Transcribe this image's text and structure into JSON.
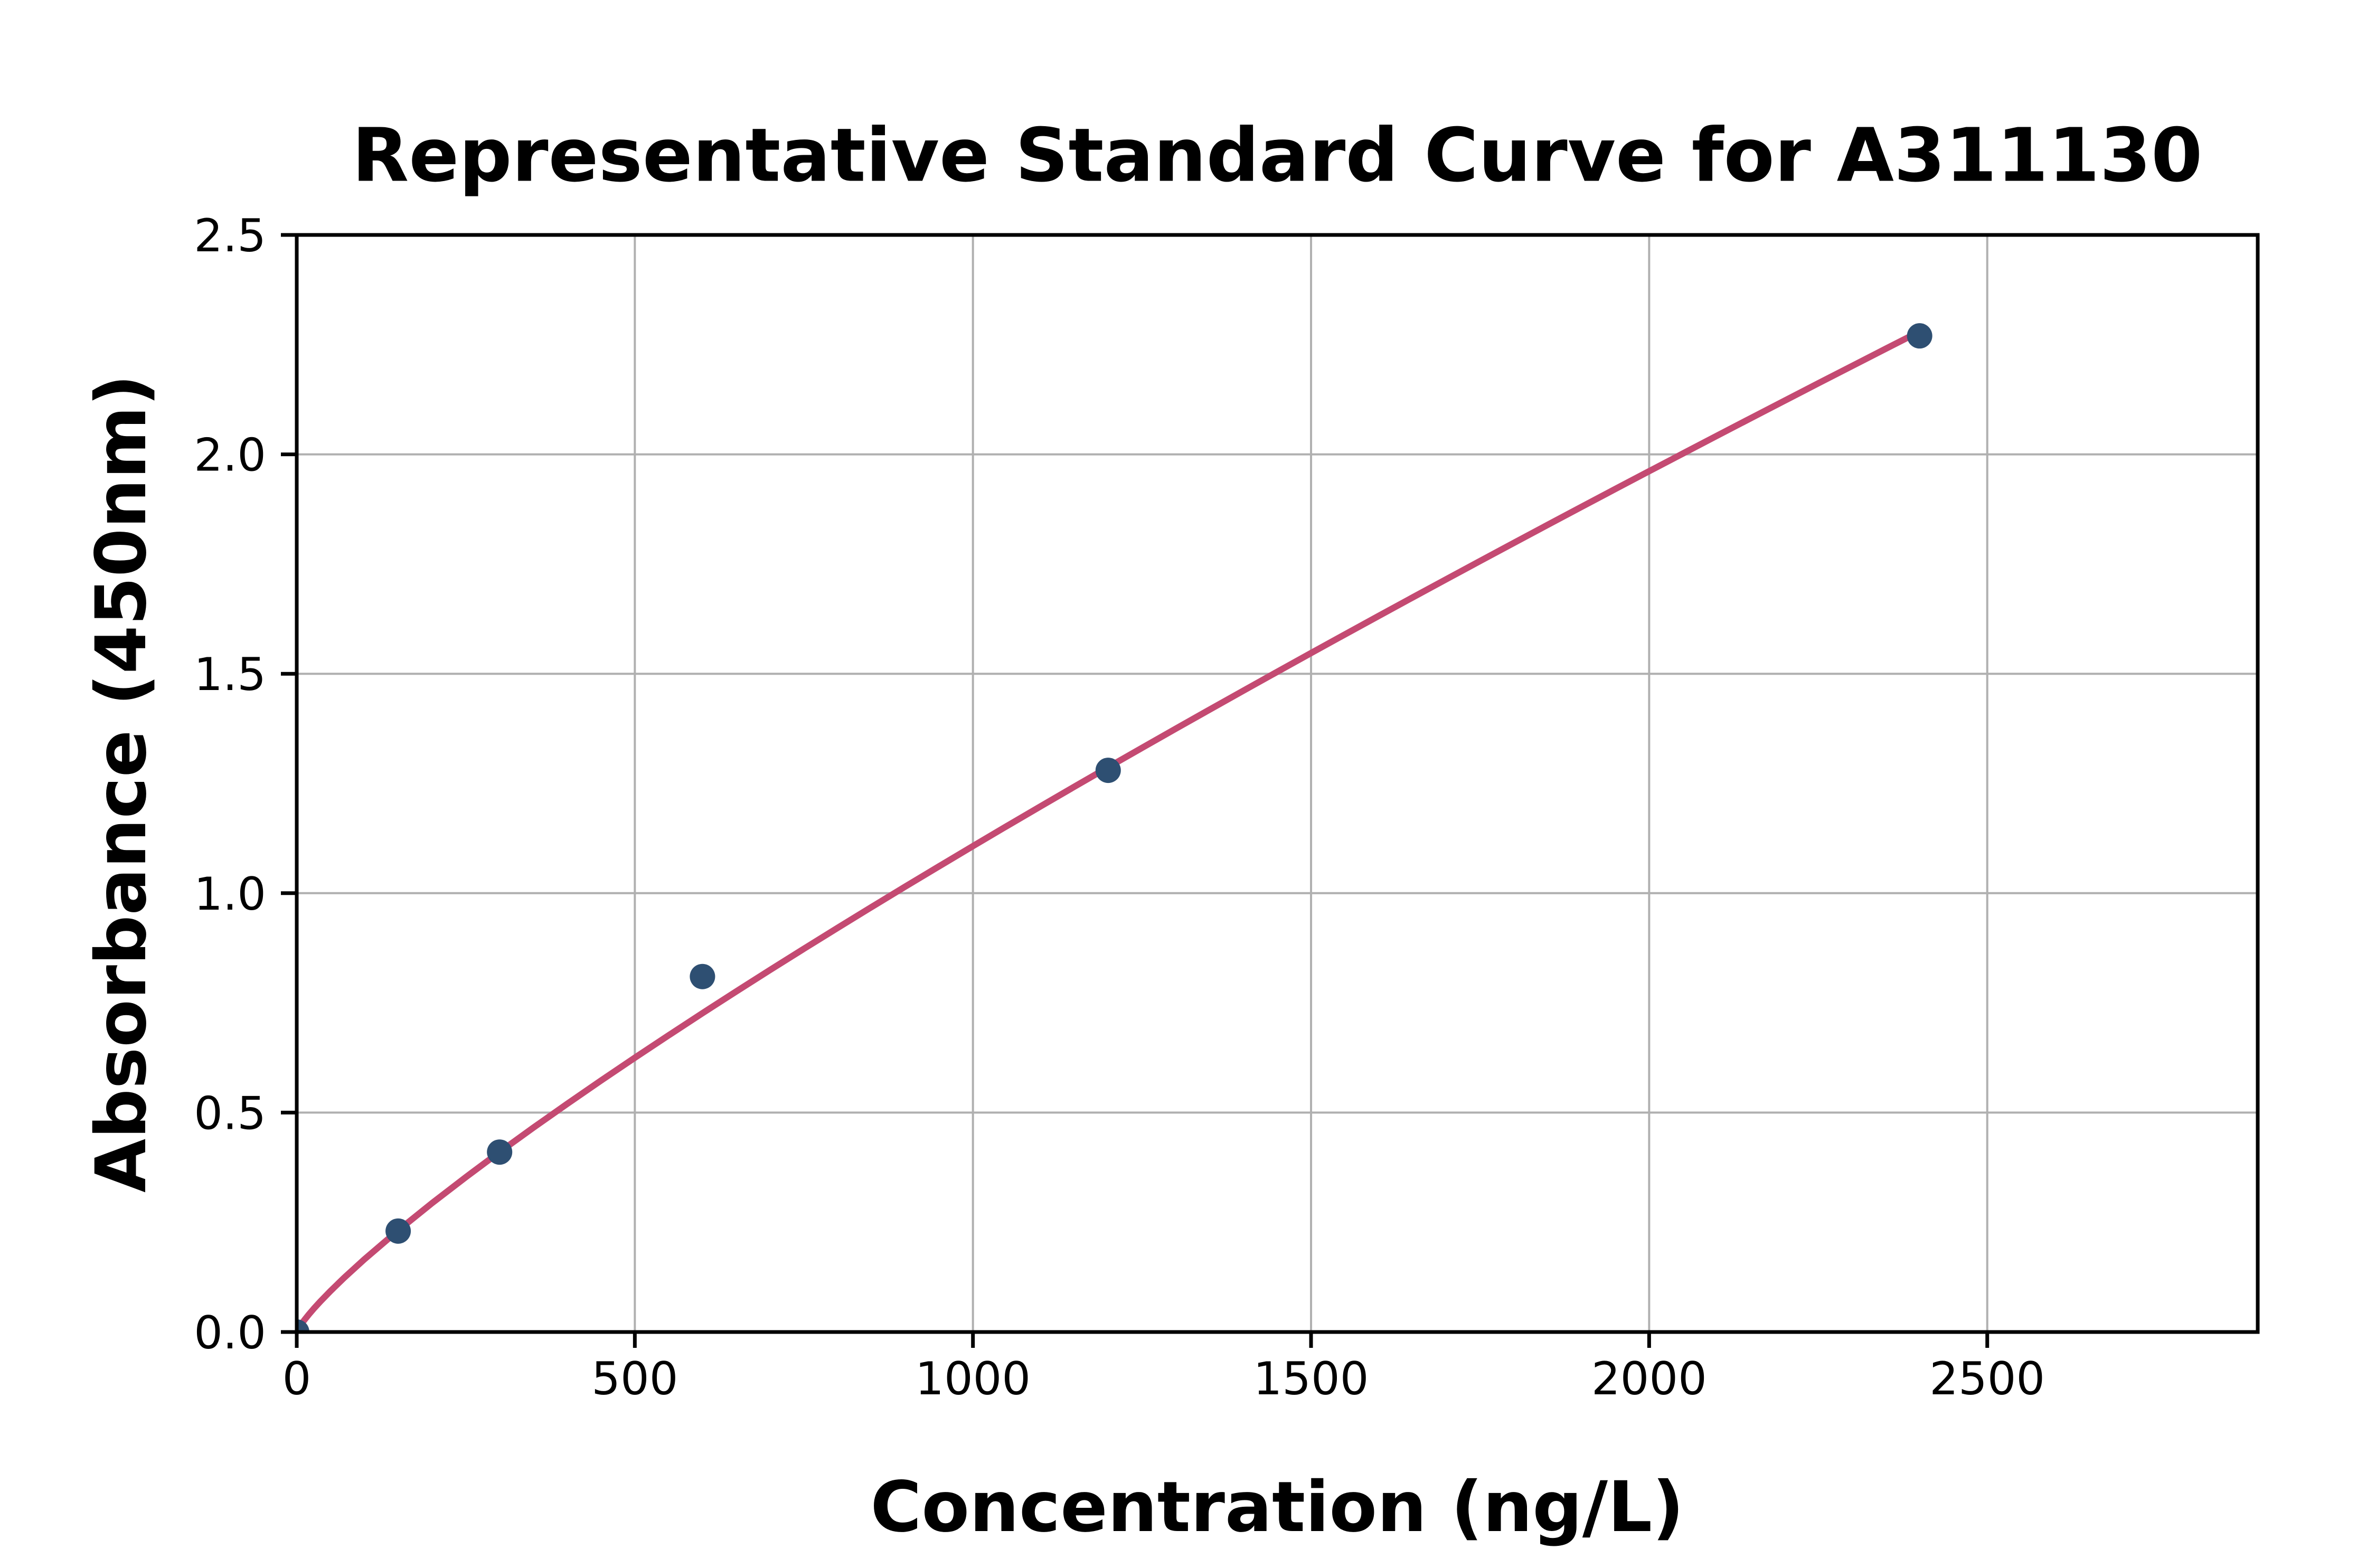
{
  "chart_data": {
    "type": "scatter",
    "title": "Representative Standard Curve for A311130",
    "xlabel": "Concentration (ng/L)",
    "ylabel": "Absorbance (450nm)",
    "points": [
      {
        "x": 0,
        "y": 0.0
      },
      {
        "x": 150,
        "y": 0.23
      },
      {
        "x": 300,
        "y": 0.41
      },
      {
        "x": 600,
        "y": 0.81
      },
      {
        "x": 1200,
        "y": 1.28
      },
      {
        "x": 2400,
        "y": 2.27
      }
    ],
    "fit_curve": {
      "type": "power",
      "formula": "y = a * x^b",
      "a": 0.003709,
      "b": 0.825,
      "x_start": 0,
      "x_end": 2400
    },
    "x_ticks": [
      {
        "value": 0,
        "label": "0"
      },
      {
        "value": 500,
        "label": "500"
      },
      {
        "value": 1000,
        "label": "1000"
      },
      {
        "value": 1500,
        "label": "1500"
      },
      {
        "value": 2000,
        "label": "2000"
      },
      {
        "value": 2500,
        "label": "2500"
      }
    ],
    "y_ticks": [
      {
        "value": 0.0,
        "label": "0.0"
      },
      {
        "value": 0.5,
        "label": "0.5"
      },
      {
        "value": 1.0,
        "label": "1.0"
      },
      {
        "value": 1.5,
        "label": "1.5"
      },
      {
        "value": 2.0,
        "label": "2.0"
      },
      {
        "value": 2.5,
        "label": "2.5"
      }
    ],
    "xlim": [
      0,
      2900
    ],
    "ylim": [
      0,
      2.5
    ],
    "grid": true,
    "legend": null,
    "colors": {
      "point": "#2e4f72",
      "curve": "#c44a72",
      "grid": "#b0b0b0",
      "axis": "#000000",
      "background": "#ffffff"
    }
  }
}
